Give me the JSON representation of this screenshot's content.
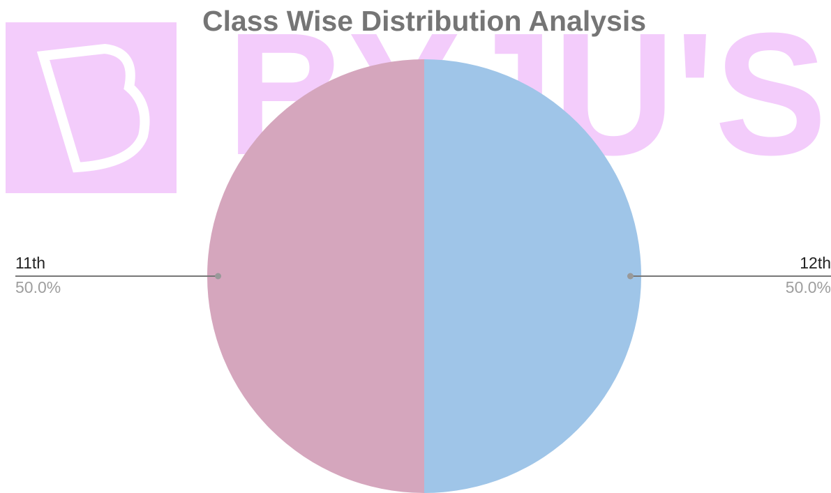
{
  "chart_data": {
    "type": "pie",
    "title": "Class Wise Distribution Analysis",
    "watermark": "BYJU'S",
    "categories": [
      "11th",
      "12th"
    ],
    "values": [
      50,
      50
    ],
    "value_labels": [
      "50.0%",
      "50.0%"
    ],
    "colors": [
      "#d5a6bd",
      "#9fc5e8"
    ]
  }
}
